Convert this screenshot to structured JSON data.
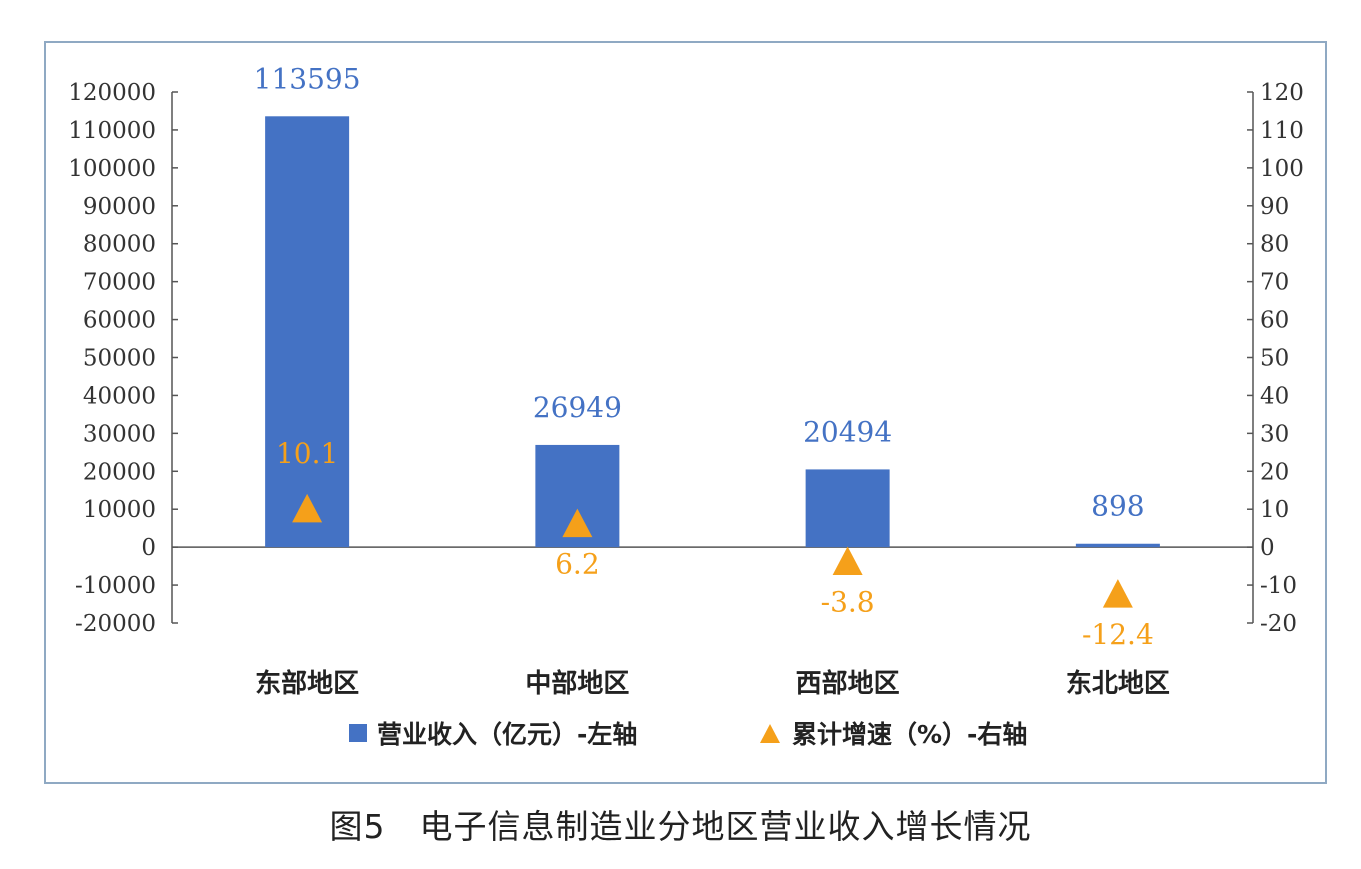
{
  "caption": "图5　电子信息制造业分地区营业收入增长情况",
  "colors": {
    "bar": "#4472c4",
    "marker": "#f5a01a",
    "frame": "#8fa9c3",
    "axis": "#555555"
  },
  "chart_data": {
    "type": "bar",
    "categories": [
      "东部地区",
      "中部地区",
      "西部地区",
      "东北地区"
    ],
    "series": [
      {
        "name": "营业收入（亿元）-左轴",
        "type": "bar",
        "axis": "left",
        "values": [
          113595,
          26949,
          20494,
          898
        ],
        "labels": [
          "113595",
          "26949",
          "20494",
          "898"
        ]
      },
      {
        "name": "累计增速（%）-右轴",
        "type": "scatter",
        "marker": "triangle",
        "axis": "right",
        "values": [
          10.1,
          6.2,
          -3.8,
          -12.4
        ],
        "labels": [
          "10.1",
          "6.2",
          "-3.8",
          "-12.4"
        ]
      }
    ],
    "left_axis": {
      "ylim": [
        -20000,
        120000
      ],
      "ticks": [
        "-20000",
        "-10000",
        "0",
        "10000",
        "20000",
        "30000",
        "40000",
        "50000",
        "60000",
        "70000",
        "80000",
        "90000",
        "100000",
        "110000",
        "120000"
      ]
    },
    "right_axis": {
      "ylim": [
        -20,
        120
      ],
      "ticks": [
        "-20",
        "-10",
        "0",
        "10",
        "20",
        "30",
        "40",
        "50",
        "60",
        "70",
        "80",
        "90",
        "100",
        "110",
        "120"
      ]
    },
    "legend_position": "bottom",
    "grid": false
  }
}
